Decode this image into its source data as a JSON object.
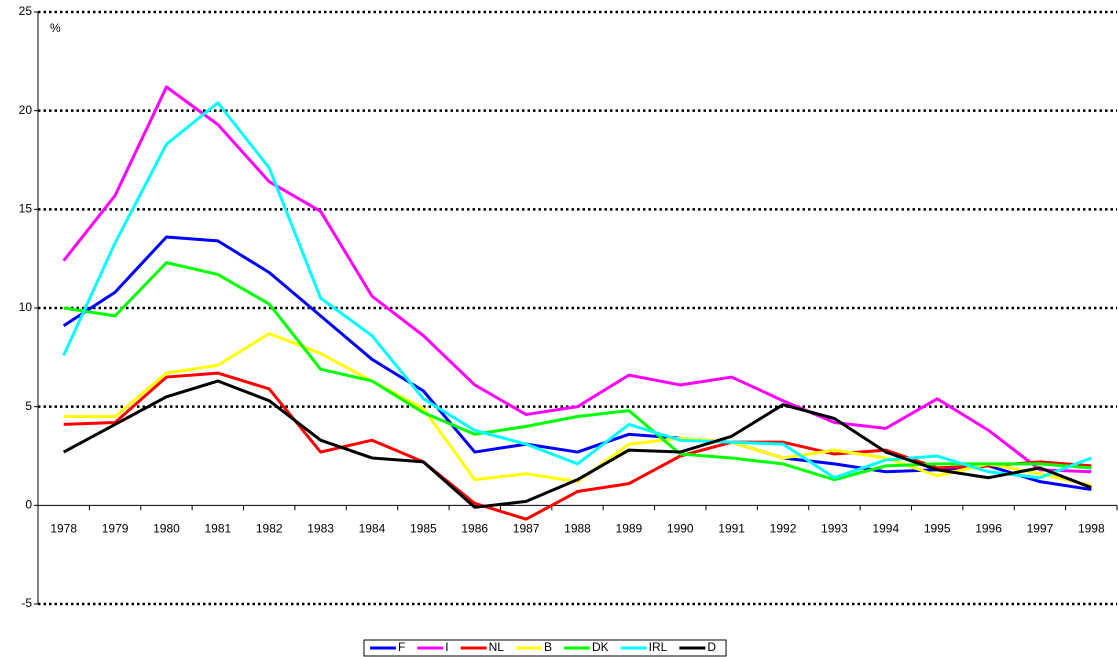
{
  "chart_data": {
    "type": "line",
    "y_label": "%",
    "categories": [
      "1978",
      "1979",
      "1980",
      "1981",
      "1982",
      "1983",
      "1984",
      "1985",
      "1986",
      "1987",
      "1988",
      "1989",
      "1990",
      "1991",
      "1992",
      "1993",
      "1994",
      "1995",
      "1996",
      "1997",
      "1998"
    ],
    "ylim": [
      -5,
      25
    ],
    "yticks": [
      -5,
      0,
      5,
      10,
      15,
      20,
      25
    ],
    "grid": true,
    "series": [
      {
        "name": "F",
        "color": "#0000ff",
        "values": [
          9.1,
          10.8,
          13.6,
          13.4,
          11.8,
          9.6,
          7.4,
          5.8,
          2.7,
          3.1,
          2.7,
          3.6,
          3.4,
          3.2,
          2.4,
          2.1,
          1.7,
          1.8,
          2.0,
          1.2,
          0.8
        ]
      },
      {
        "name": "I",
        "color": "#ff00ff",
        "values": [
          12.4,
          15.7,
          21.2,
          19.3,
          16.4,
          14.9,
          10.6,
          8.6,
          6.1,
          4.6,
          5.0,
          6.6,
          6.1,
          6.5,
          5.3,
          4.2,
          3.9,
          5.4,
          3.8,
          1.8,
          1.7
        ]
      },
      {
        "name": "NL",
        "color": "#ff0000",
        "values": [
          4.1,
          4.2,
          6.5,
          6.7,
          5.9,
          2.7,
          3.3,
          2.2,
          0.1,
          -0.7,
          0.7,
          1.1,
          2.5,
          3.2,
          3.2,
          2.6,
          2.8,
          1.9,
          2.0,
          2.2,
          2.0
        ]
      },
      {
        "name": "B",
        "color": "#ffff00",
        "values": [
          4.5,
          4.5,
          6.7,
          7.1,
          8.7,
          7.7,
          6.3,
          4.9,
          1.3,
          1.6,
          1.2,
          3.1,
          3.4,
          3.2,
          2.4,
          2.8,
          2.4,
          1.5,
          2.1,
          1.6,
          1.0
        ]
      },
      {
        "name": "DK",
        "color": "#00ff00",
        "values": [
          10.0,
          9.6,
          12.3,
          11.7,
          10.2,
          6.9,
          6.3,
          4.7,
          3.6,
          4.0,
          4.5,
          4.8,
          2.6,
          2.4,
          2.1,
          1.3,
          2.0,
          2.1,
          2.1,
          2.1,
          1.9
        ]
      },
      {
        "name": "IRL",
        "color": "#00ffff",
        "values": [
          7.6,
          13.3,
          18.3,
          20.4,
          17.1,
          10.5,
          8.6,
          5.4,
          3.8,
          3.1,
          2.1,
          4.1,
          3.3,
          3.2,
          3.1,
          1.4,
          2.3,
          2.5,
          1.7,
          1.4,
          2.4
        ]
      },
      {
        "name": "D",
        "color": "#000000",
        "values": [
          2.7,
          4.1,
          5.5,
          6.3,
          5.3,
          3.3,
          2.4,
          2.2,
          -0.1,
          0.2,
          1.3,
          2.8,
          2.7,
          3.5,
          5.1,
          4.4,
          2.7,
          1.8,
          1.4,
          1.9,
          0.9
        ]
      }
    ]
  }
}
